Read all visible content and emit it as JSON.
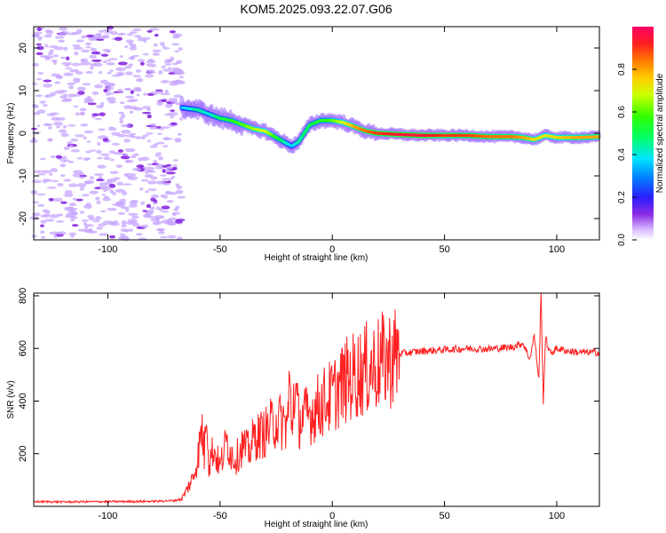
{
  "title": "KOM5.2025.093.22.07.G06",
  "chart_data": [
    {
      "type": "heatmap",
      "xlabel": "Height of straight line (km)",
      "ylabel": "Frequency (Hz)",
      "xlim": [
        -133,
        119
      ],
      "ylim": [
        -25,
        25
      ],
      "xticks": [
        -100,
        -50,
        0,
        50,
        100
      ],
      "yticks": [
        -20,
        -10,
        0,
        10,
        20
      ],
      "colorbar": {
        "label": "Normalized spectral amplitude",
        "range": [
          0,
          1
        ],
        "ticks": [
          "0.0",
          "0.2",
          "0.4",
          "0.6",
          "0.8"
        ]
      },
      "noise_region_x": [
        -133,
        -67
      ],
      "ridge": {
        "x": [
          -67,
          -60,
          -55,
          -50,
          -45,
          -40,
          -35,
          -30,
          -25,
          -20,
          -18,
          -15,
          -10,
          -5,
          0,
          5,
          10,
          15,
          20,
          30,
          40,
          50,
          60,
          70,
          80,
          85,
          90,
          95,
          100,
          110,
          119
        ],
        "frequency": [
          6,
          5.5,
          4.5,
          3.5,
          3,
          2,
          1,
          0.5,
          -1,
          -2.5,
          -3,
          -2,
          2,
          3,
          3,
          2.5,
          1.5,
          0.5,
          0,
          -0.3,
          -0.5,
          -0.5,
          -0.5,
          -0.8,
          -0.8,
          -1,
          -1.5,
          -0.5,
          -1,
          -1,
          -0.8
        ],
        "amplitude": [
          0.35,
          0.45,
          0.4,
          0.5,
          0.55,
          0.6,
          0.65,
          0.7,
          0.55,
          0.4,
          0.35,
          0.45,
          0.5,
          0.55,
          0.6,
          0.7,
          0.8,
          0.85,
          0.9,
          0.95,
          0.95,
          0.9,
          0.9,
          0.85,
          0.85,
          0.8,
          0.75,
          0.7,
          0.75,
          0.8,
          0.8
        ]
      },
      "grid": false
    },
    {
      "type": "line",
      "xlabel": "Height of straight line (km)",
      "ylabel": "SNR (v/v)",
      "xlim": [
        -133,
        119
      ],
      "ylim": [
        0,
        810
      ],
      "xticks": [
        -100,
        -50,
        0,
        50,
        100
      ],
      "yticks": [
        200,
        400,
        600,
        800
      ],
      "color": "#ff2020",
      "series": [
        {
          "x": [
            -133,
            -120,
            -100,
            -80,
            -70,
            -67,
            -65,
            -62,
            -60,
            -58,
            -57,
            -56,
            -55,
            -53,
            -50,
            -47,
            -45,
            -43,
            -40,
            -37,
            -35,
            -30,
            -25,
            -20,
            -19,
            -18,
            -17,
            -15,
            -10,
            -5,
            0,
            5,
            10,
            15,
            20,
            25,
            30,
            35,
            40,
            50,
            60,
            70,
            80,
            85,
            88,
            90,
            92,
            93,
            94,
            95,
            97,
            100,
            105,
            110,
            119
          ],
          "y": [
            18,
            17,
            18,
            19,
            22,
            30,
            60,
            110,
            180,
            300,
            190,
            420,
            160,
            220,
            150,
            250,
            200,
            180,
            230,
            210,
            260,
            280,
            330,
            310,
            460,
            300,
            460,
            330,
            350,
            390,
            420,
            470,
            500,
            520,
            540,
            560,
            580,
            585,
            590,
            595,
            600,
            598,
            605,
            620,
            560,
            650,
            480,
            810,
            400,
            640,
            580,
            600,
            590,
            585,
            585
          ]
        }
      ],
      "grid": false
    }
  ]
}
